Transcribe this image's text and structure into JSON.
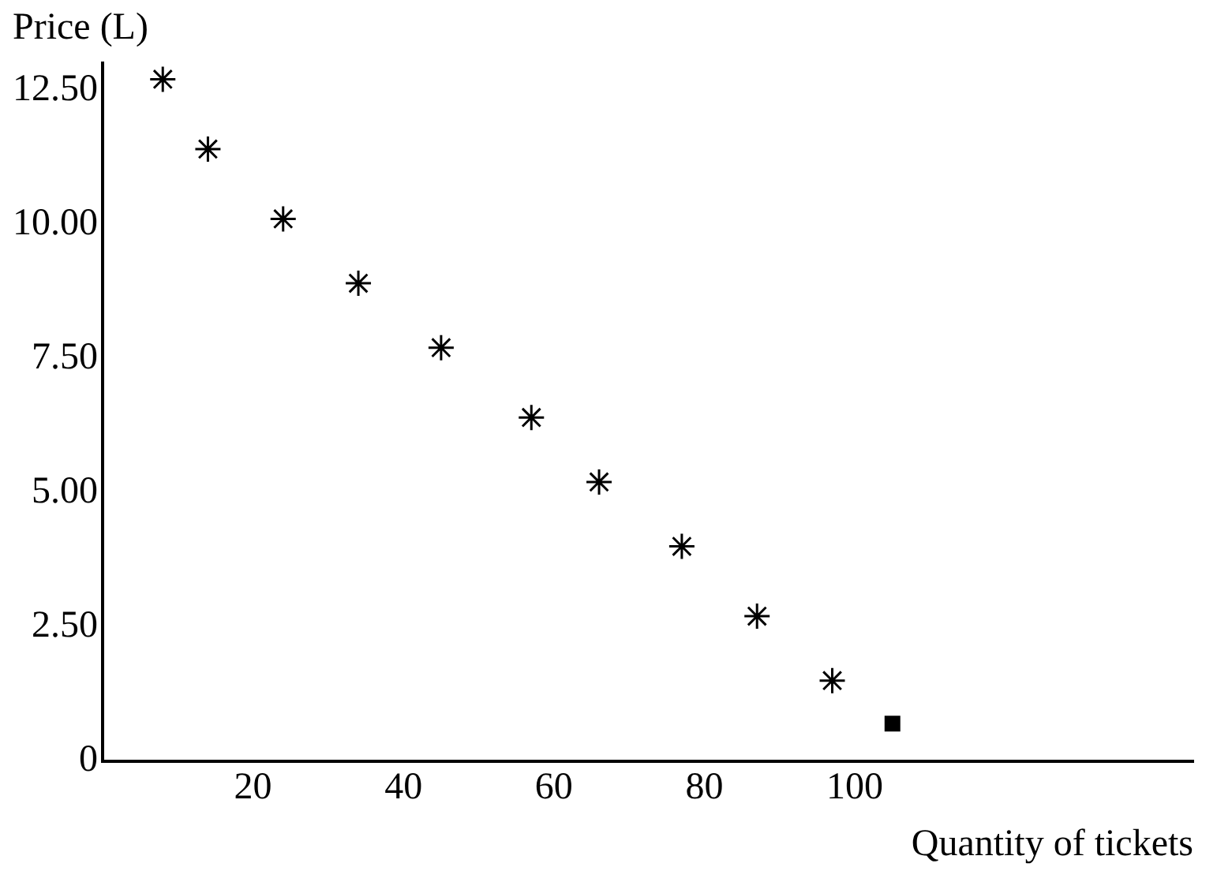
{
  "chart_data": {
    "type": "scatter",
    "xlabel": "Quantity of tickets",
    "ylabel": "Price (L)",
    "series": [
      {
        "x": [
          8,
          14,
          24,
          34,
          45,
          57,
          66,
          77,
          87,
          97
        ],
        "values": [
          12.7,
          11.4,
          10.1,
          8.9,
          7.7,
          6.4,
          5.2,
          4.0,
          2.7,
          1.5
        ],
        "color": "#000000",
        "marker": "cross"
      },
      {
        "x": [
          105
        ],
        "values": [
          0.7
        ],
        "color": "#000000",
        "marker": "square"
      }
    ],
    "xlim": [
      0,
      145
    ],
    "xticks": [
      20,
      40,
      60,
      80,
      100
    ],
    "ylim": [
      0,
      13
    ],
    "yticks": [
      0,
      {
        "value": 2.5,
        "label": "2.50"
      },
      {
        "value": 5,
        "label": "5.00"
      },
      {
        "value": 7.5,
        "label": "7.50"
      },
      {
        "value": 10,
        "label": "10.00"
      },
      {
        "value": 12.5,
        "label": "12.50"
      }
    ],
    "grid": false,
    "legend": false
  }
}
